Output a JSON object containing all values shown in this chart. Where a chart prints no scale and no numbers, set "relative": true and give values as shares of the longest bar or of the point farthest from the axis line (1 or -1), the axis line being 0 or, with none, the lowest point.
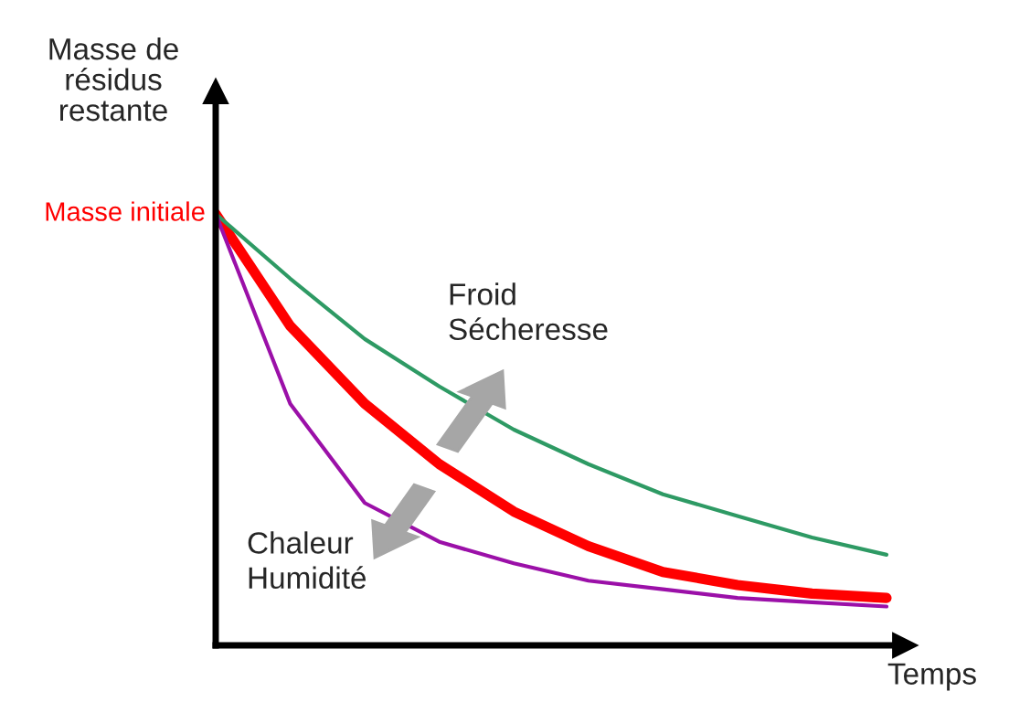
{
  "chart_data": {
    "type": "line",
    "relative": true,
    "xlabel": "Temps",
    "ylabel": "Masse de\nrésidus\nrestante",
    "categories": [
      null,
      null,
      null,
      null,
      null,
      null,
      null,
      null,
      null,
      null
    ],
    "series": [
      {
        "color": "#ff0000",
        "values": [
          1,
          0.74,
          0.56,
          0.42,
          0.31,
          0.23,
          0.17,
          0.14,
          0.12,
          0.11
        ]
      },
      {
        "color": "#2e9a64",
        "values": [
          1,
          0.85,
          0.71,
          0.6,
          0.5,
          0.42,
          0.35,
          0.3,
          0.25,
          0.21
        ]
      },
      {
        "color": "#9b10a8",
        "values": [
          1,
          0.56,
          0.33,
          0.24,
          0.19,
          0.15,
          0.13,
          0.11,
          0.1,
          0.09
        ]
      }
    ],
    "annotations": [
      "Masse initiale",
      "Froid\nSécheresse",
      "Chaleur\nHumidité"
    ],
    "legend": false,
    "marker": "none",
    "line_style": "solid"
  }
}
